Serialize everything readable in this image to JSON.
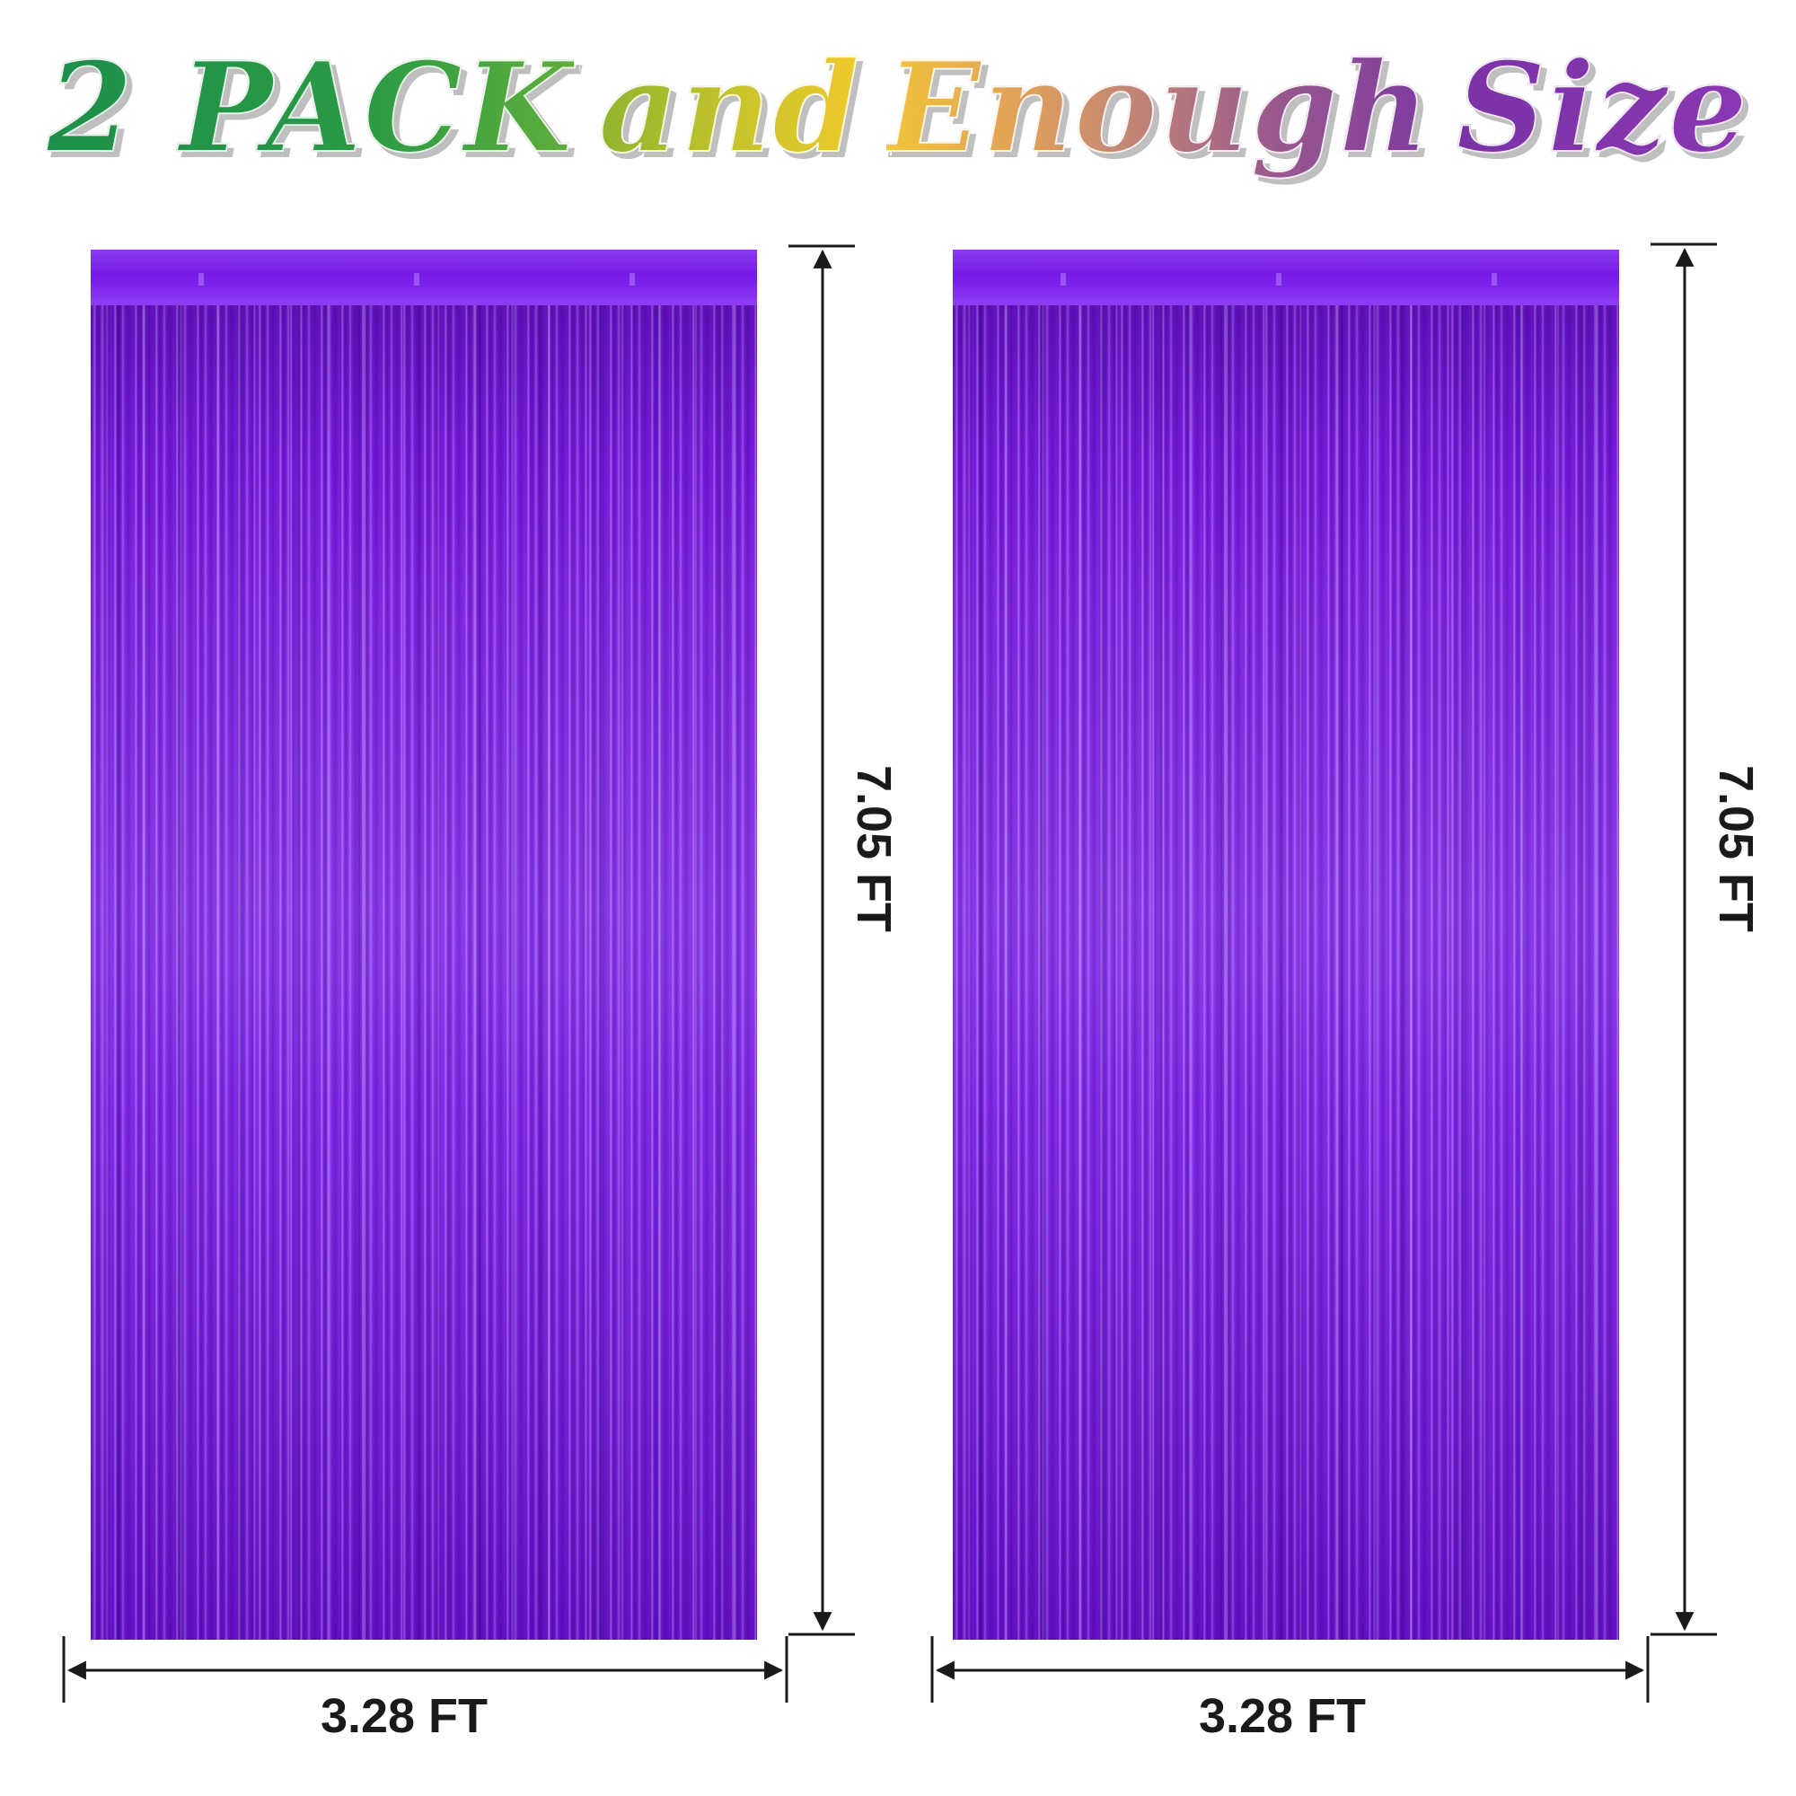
{
  "headline": {
    "part1": "2 PACK",
    "part2": "and",
    "part3": "Enough",
    "part4": "Size"
  },
  "product": {
    "curtains": [
      {
        "height_label": "7.05 FT",
        "width_label": "3.28 FT",
        "color": "#7a1fd6"
      },
      {
        "height_label": "7.05 FT",
        "width_label": "3.28 FT",
        "color": "#7a1fd6"
      }
    ]
  },
  "colors": {
    "green": "#1d8f4a",
    "yellow": "#e8c52c",
    "purple": "#7e3aa0",
    "curtain": "#7a1fd6",
    "dimension_line": "#1a1a1a"
  }
}
